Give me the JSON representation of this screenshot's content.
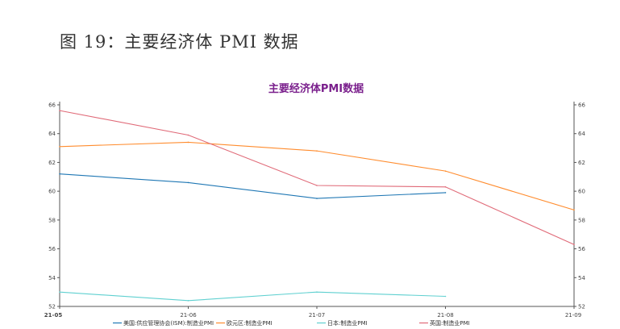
{
  "heading": "图 19：主要经济体 PMI 数据",
  "chart_data": {
    "type": "line",
    "title": "主要经济体PMI数据",
    "categories": [
      "21-05",
      "21-06",
      "21-07",
      "21-08",
      "21-09"
    ],
    "ylim": [
      52,
      66
    ],
    "yticks": [
      52,
      54,
      56,
      58,
      60,
      62,
      64,
      66
    ],
    "grid": false,
    "legend_position": "bottom",
    "series": [
      {
        "name": "美国:供应管理协会(ISM):制造业PMI",
        "color": "#1f77b4",
        "values": [
          61.2,
          60.6,
          59.5,
          59.9,
          null
        ]
      },
      {
        "name": "欧元区:制造业PMI",
        "color": "#ff8c2e",
        "values": [
          63.1,
          63.4,
          62.8,
          61.4,
          58.7
        ]
      },
      {
        "name": "日本:制造业PMI",
        "color": "#5fd0d0",
        "values": [
          53.0,
          52.4,
          53.0,
          52.7,
          null
        ]
      },
      {
        "name": "英国:制造业PMI",
        "color": "#e06a78",
        "values": [
          65.6,
          63.9,
          60.4,
          60.3,
          56.3
        ]
      }
    ]
  }
}
